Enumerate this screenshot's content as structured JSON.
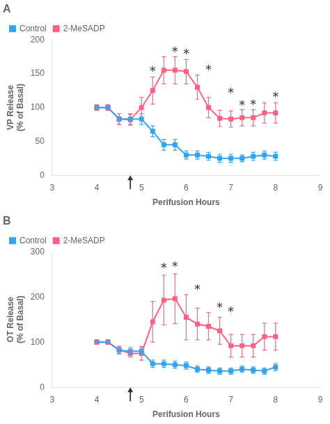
{
  "chart_data": [
    {
      "type": "line",
      "title": "A",
      "xlabel": "Perifusion Hours",
      "ylabel": "VP Release\n(% of Basal)",
      "xlim": [
        3,
        9
      ],
      "xticks": [
        3,
        4,
        5,
        6,
        7,
        8,
        9
      ],
      "ylim": [
        0,
        200
      ],
      "yticks": [
        0,
        50,
        100,
        150,
        200
      ],
      "grid": false,
      "legend": "upper left",
      "x": [
        4.0,
        4.25,
        4.5,
        4.75,
        5.0,
        5.25,
        5.5,
        5.75,
        6.0,
        6.25,
        6.5,
        6.75,
        7.0,
        7.25,
        7.5,
        7.75,
        8.0
      ],
      "series": [
        {
          "name": "Control",
          "marker": "square",
          "line_style": "solid",
          "values": [
            100,
            100,
            83,
            83,
            83,
            65,
            45,
            45,
            30,
            30,
            28,
            25,
            25,
            25,
            28,
            30,
            28
          ],
          "yerr": [
            4,
            4,
            8,
            8,
            8,
            8,
            8,
            8,
            6,
            6,
            6,
            6,
            6,
            5,
            6,
            6,
            6
          ]
        },
        {
          "name": "2-MeSADP",
          "marker": "square",
          "line_style": "solid",
          "values": [
            100,
            100,
            83,
            82,
            100,
            125,
            155,
            155,
            153,
            130,
            100,
            84,
            83,
            85,
            85,
            92,
            92
          ],
          "yerr": [
            4,
            4,
            8,
            8,
            15,
            20,
            20,
            20,
            18,
            18,
            15,
            12,
            12,
            12,
            12,
            15,
            15
          ]
        }
      ],
      "annotations": [
        {
          "text": "*",
          "x": 5.25,
          "y": 150
        },
        {
          "text": "*",
          "x": 5.75,
          "y": 178
        },
        {
          "text": "*",
          "x": 6.0,
          "y": 175
        },
        {
          "text": "*",
          "x": 6.5,
          "y": 152
        },
        {
          "text": "*",
          "x": 7.0,
          "y": 118
        },
        {
          "text": "*",
          "x": 7.25,
          "y": 99
        },
        {
          "text": "*",
          "x": 7.5,
          "y": 100
        },
        {
          "text": "*",
          "x": 8.0,
          "y": 112
        }
      ],
      "arrows": [
        {
          "x": 4.75,
          "y": 0
        }
      ]
    },
    {
      "type": "line",
      "title": "B",
      "xlabel": "Perifusion Hours",
      "ylabel": "OT Release\n(% of Basal)",
      "xlim": [
        3,
        9
      ],
      "xticks": [
        3,
        4,
        5,
        6,
        7,
        8,
        9
      ],
      "ylim": [
        0,
        300
      ],
      "yticks": [
        0,
        100,
        200,
        300
      ],
      "grid": false,
      "legend": "upper left",
      "x": [
        4.0,
        4.25,
        4.5,
        4.75,
        5.0,
        5.25,
        5.5,
        5.75,
        6.0,
        6.25,
        6.5,
        6.75,
        7.0,
        7.25,
        7.5,
        7.75,
        8.0
      ],
      "series": [
        {
          "name": "Control",
          "marker": "square",
          "line_style": "solid",
          "values": [
            100,
            100,
            82,
            80,
            80,
            52,
            52,
            50,
            48,
            40,
            38,
            36,
            36,
            40,
            38,
            36,
            45
          ],
          "yerr": [
            5,
            5,
            8,
            8,
            8,
            8,
            8,
            8,
            8,
            7,
            7,
            7,
            7,
            7,
            7,
            7,
            8
          ]
        },
        {
          "name": "2-MeSADP",
          "marker": "square",
          "line_style": "solid",
          "values": [
            100,
            100,
            83,
            75,
            75,
            145,
            193,
            196,
            155,
            140,
            135,
            125,
            92,
            92,
            92,
            112,
            112
          ],
          "yerr": [
            5,
            5,
            8,
            8,
            15,
            45,
            55,
            55,
            50,
            35,
            30,
            30,
            25,
            25,
            25,
            30,
            30
          ]
        }
      ],
      "annotations": [
        {
          "text": "*",
          "x": 5.5,
          "y": 258
        },
        {
          "text": "*",
          "x": 5.75,
          "y": 262
        },
        {
          "text": "*",
          "x": 6.25,
          "y": 210
        },
        {
          "text": "*",
          "x": 6.75,
          "y": 170
        },
        {
          "text": "*",
          "x": 7.0,
          "y": 162
        }
      ],
      "arrows": [
        {
          "x": 4.75,
          "y": 0
        }
      ]
    }
  ]
}
